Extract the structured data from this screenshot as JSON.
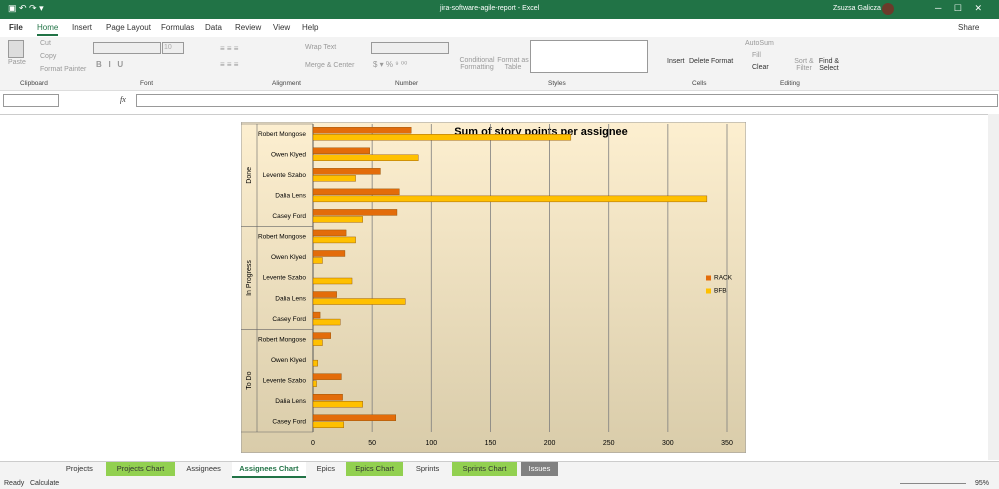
{
  "window": {
    "title": "jira-software-agile-report - Excel",
    "user": "Zsuzsa Galicza"
  },
  "menu": {
    "tabs": [
      "File",
      "Home",
      "Insert",
      "Page Layout",
      "Formulas",
      "Data",
      "Review",
      "View",
      "Help"
    ],
    "share": "Share"
  },
  "ribbon": {
    "clipboard": {
      "paste": "Paste",
      "cut": "Cut",
      "copy": "Copy",
      "format_painter": "Format Painter",
      "label": "Clipboard"
    },
    "font": {
      "size": "10",
      "label": "Font"
    },
    "alignment": {
      "wrap_text": "Wrap Text",
      "merge_center": "Merge & Center",
      "label": "Alignment"
    },
    "number": {
      "label": "Number"
    },
    "styles": {
      "conditional": "Conditional Formatting",
      "format_table": "Format as Table",
      "label": "Styles"
    },
    "cells": {
      "insert": "Insert",
      "delete": "Delete",
      "format": "Format",
      "label": "Cells"
    },
    "editing": {
      "autosum": "AutoSum",
      "fill": "Fill",
      "clear": "Clear",
      "sort_filter": "Sort & Filter",
      "find_select": "Find & Select",
      "label": "Editing"
    }
  },
  "formula_bar": {
    "fx": "fx"
  },
  "chart_data": {
    "type": "bar",
    "orientation": "horizontal",
    "title": "Sum of story points per assignee",
    "groups": [
      {
        "label": "Done",
        "categories": [
          "Robert Mongose",
          "Owen Klyed",
          "Levente Szabo",
          "Dalia Lens",
          "Casey Ford"
        ]
      },
      {
        "label": "In Progress",
        "categories": [
          "Robert Mongose",
          "Owen Klyed",
          "Levente Szabo",
          "Dalia Lens",
          "Casey Ford"
        ]
      },
      {
        "label": "To Do",
        "categories": [
          "Robert Mongose",
          "Owen Klyed",
          "Levente Szabo",
          "Dalia Lens",
          "Casey Ford"
        ]
      }
    ],
    "series": [
      {
        "name": "RACK",
        "color": "#e36c0a",
        "values": [
          83,
          48,
          57,
          73,
          71,
          28,
          27,
          0,
          20,
          6,
          15,
          0,
          24,
          25,
          70
        ]
      },
      {
        "name": "BFB",
        "color": "#ffc000",
        "values": [
          218,
          89,
          36,
          333,
          42,
          36,
          8,
          33,
          78,
          23,
          8,
          4,
          3,
          42,
          26
        ]
      }
    ],
    "xlim": [
      0,
      350
    ],
    "xticks": [
      0,
      50,
      100,
      150,
      200,
      250,
      300,
      350
    ],
    "grid": true,
    "legend": "right"
  },
  "sheets": {
    "tabs": [
      {
        "name": "Projects",
        "color": "#f3f3f3"
      },
      {
        "name": "Projects Chart",
        "color": "#92d050"
      },
      {
        "name": "Assignees",
        "color": "#f3f3f3"
      },
      {
        "name": "Assignees Chart",
        "color": "#92d050"
      },
      {
        "name": "Epics",
        "color": "#f3f3f3"
      },
      {
        "name": "Epics Chart",
        "color": "#92d050"
      },
      {
        "name": "Sprints",
        "color": "#f3f3f3"
      },
      {
        "name": "Sprints Chart",
        "color": "#92d050"
      },
      {
        "name": "Issues",
        "color": "#808080"
      }
    ],
    "active": 3
  },
  "status_bar": {
    "ready": "Ready",
    "calculate": "Calculate",
    "zoom": "95%"
  }
}
